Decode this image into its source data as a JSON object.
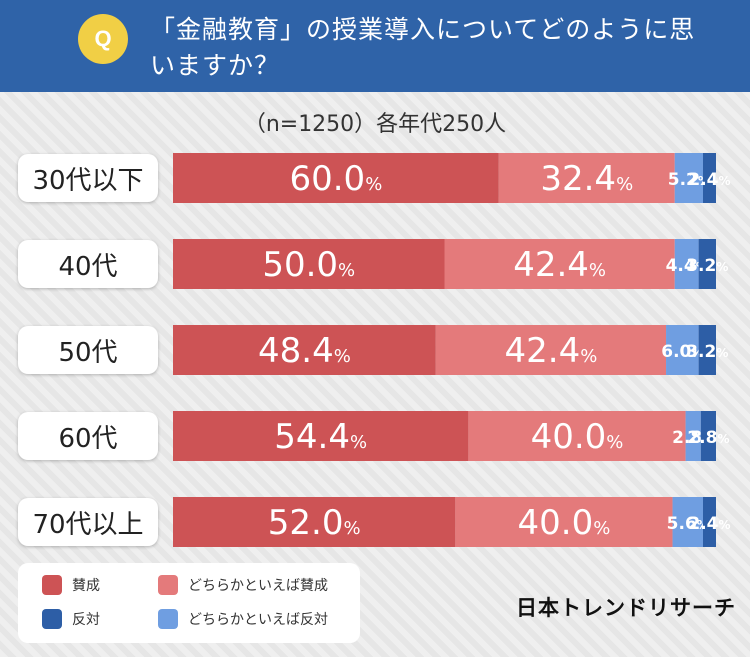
{
  "header": {
    "q_badge": "Q",
    "question": "「金融教育」の授業導入についてどのように思いますか？"
  },
  "chart_data": {
    "type": "bar",
    "orientation": "horizontal-stacked-100",
    "title": "「金融教育」の授業導入についてどのように思いますか？",
    "subtitle": "（n=1250）各年代250人",
    "categories": [
      "30代以下",
      "40代",
      "50代",
      "60代",
      "70代以上"
    ],
    "series": [
      {
        "name": "賛成",
        "color": "#cd5355",
        "values": [
          60.0,
          50.0,
          48.4,
          54.4,
          52.0
        ]
      },
      {
        "name": "どちらかといえば賛成",
        "color": "#e47a7b",
        "values": [
          32.4,
          42.4,
          42.4,
          40.0,
          40.0
        ]
      },
      {
        "name": "どちらかといえば反対",
        "color": "#6f9ee1",
        "values": [
          5.2,
          4.4,
          6.0,
          2.8,
          5.6
        ]
      },
      {
        "name": "反対",
        "color": "#2d5ea6",
        "values": [
          2.4,
          3.2,
          3.2,
          2.8,
          2.4
        ]
      }
    ],
    "value_suffix": "%",
    "xlim": [
      0,
      100
    ]
  },
  "legend": {
    "items": [
      {
        "label": "賛成",
        "color": "#cd5355"
      },
      {
        "label": "どちらかといえば賛成",
        "color": "#e47a7b"
      },
      {
        "label": "反対",
        "color": "#2d5ea6"
      },
      {
        "label": "どちらかといえば反対",
        "color": "#6f9ee1"
      }
    ]
  },
  "brand": "日本トレンドリサーチ",
  "colors": {
    "header_bg": "#2f63a8",
    "badge": "#f1cf45"
  }
}
